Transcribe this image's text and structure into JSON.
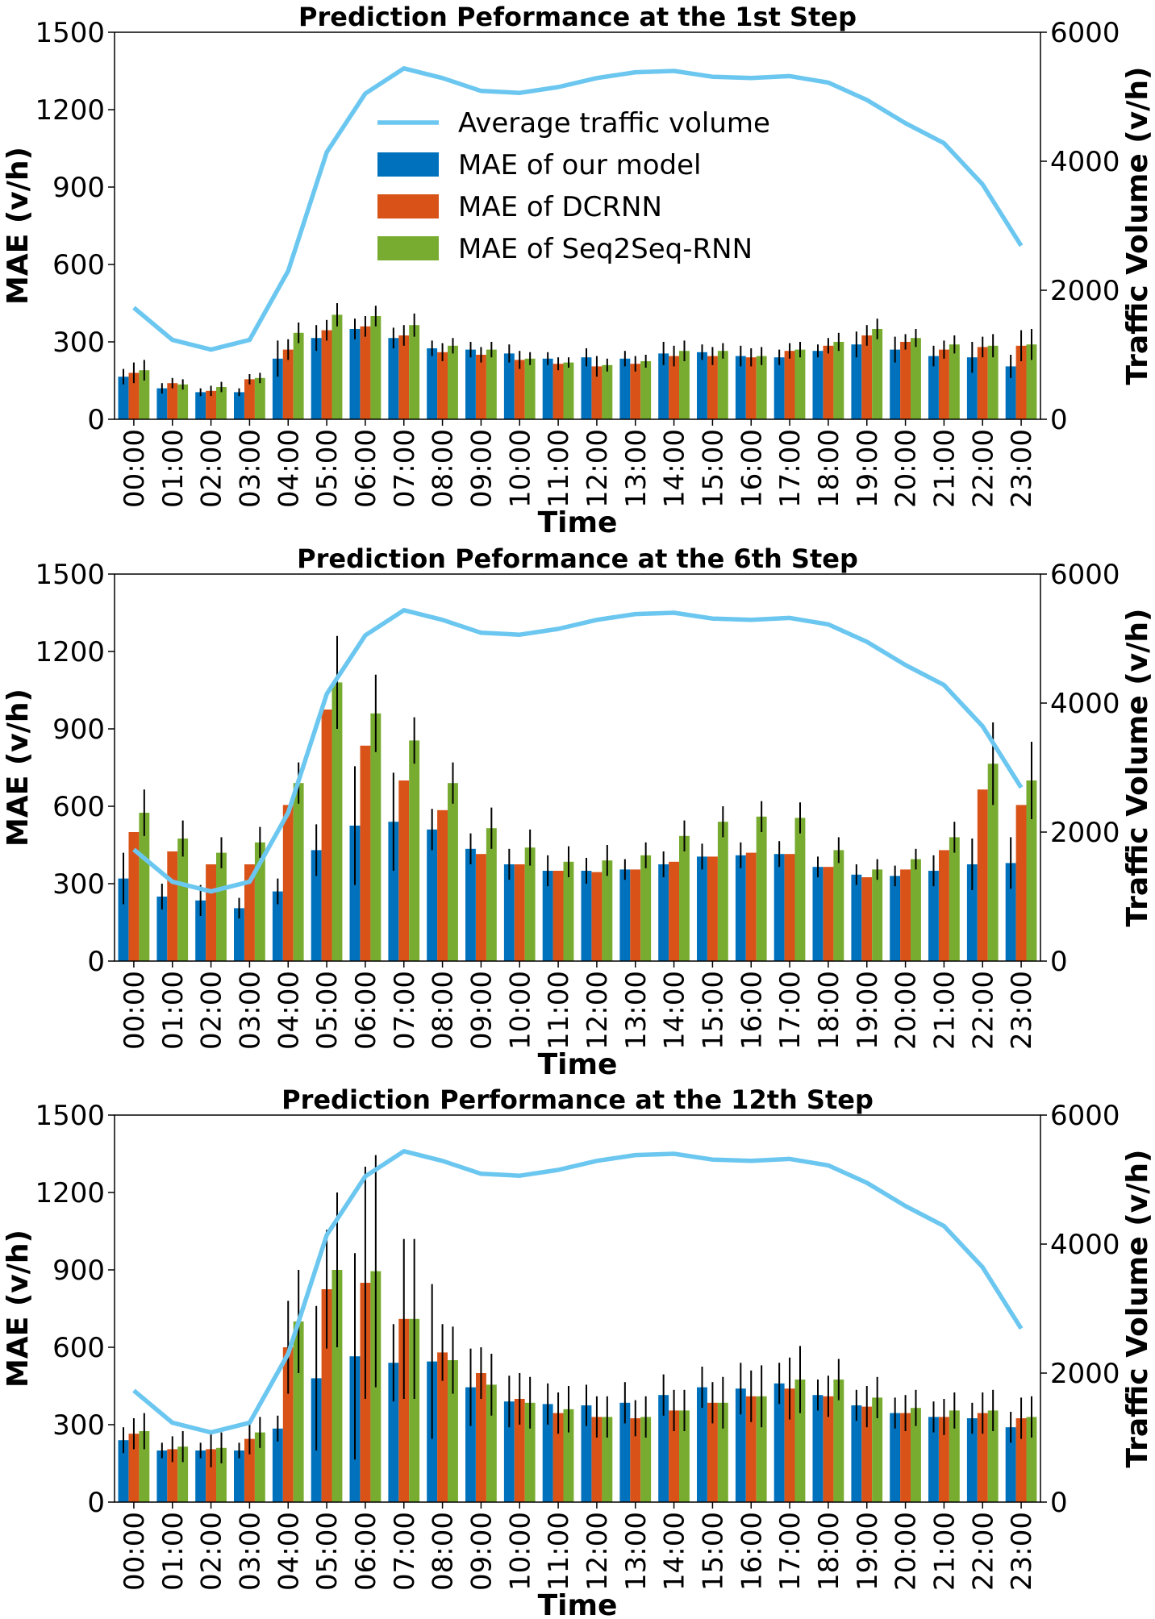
{
  "chart_data": [
    {
      "type": "bar",
      "title": "Prediction Peformance at the 1st Step",
      "xlabel": "Time",
      "ylabel": "MAE (v/h)",
      "y2label": "Traffic Volume (v/h)",
      "ylim": [
        0,
        1500
      ],
      "y2lim": [
        0,
        6000
      ],
      "yticks": [
        "0",
        "300",
        "600",
        "900",
        "1200",
        "1500"
      ],
      "y2ticks": [
        "0",
        "2000",
        "4000",
        "6000"
      ],
      "categories": [
        "00:00",
        "01:00",
        "02:00",
        "03:00",
        "04:00",
        "05:00",
        "06:00",
        "07:00",
        "08:00",
        "09:00",
        "10:00",
        "11:00",
        "12:00",
        "13:00",
        "14:00",
        "15:00",
        "16:00",
        "17:00",
        "18:00",
        "19:00",
        "20:00",
        "21:00",
        "22:00",
        "23:00"
      ],
      "series": [
        {
          "name": "MAE of our model",
          "color": "#0072bd",
          "values": [
            165,
            120,
            105,
            105,
            235,
            315,
            350,
            315,
            275,
            270,
            255,
            235,
            240,
            235,
            255,
            260,
            245,
            240,
            265,
            290,
            270,
            245,
            240,
            205
          ],
          "errors": [
            30,
            20,
            15,
            15,
            70,
            50,
            40,
            40,
            30,
            30,
            35,
            25,
            35,
            30,
            45,
            30,
            40,
            30,
            25,
            50,
            50,
            40,
            60,
            45
          ]
        },
        {
          "name": "MAE of DCRNN",
          "color": "#d95319",
          "values": [
            180,
            140,
            110,
            155,
            270,
            345,
            360,
            325,
            260,
            250,
            230,
            215,
            205,
            215,
            245,
            245,
            240,
            265,
            285,
            325,
            300,
            270,
            280,
            285
          ],
          "errors": [
            40,
            20,
            20,
            20,
            40,
            40,
            40,
            40,
            35,
            30,
            35,
            25,
            40,
            30,
            40,
            35,
            35,
            30,
            30,
            40,
            30,
            35,
            40,
            60
          ]
        },
        {
          "name": "MAE of Seq2Seq-RNN",
          "color": "#77ac30",
          "values": [
            190,
            135,
            125,
            160,
            335,
            405,
            400,
            365,
            285,
            270,
            235,
            220,
            210,
            225,
            265,
            265,
            245,
            270,
            300,
            350,
            315,
            290,
            285,
            290
          ],
          "errors": [
            40,
            20,
            20,
            20,
            40,
            45,
            40,
            45,
            30,
            30,
            25,
            20,
            25,
            25,
            40,
            30,
            35,
            30,
            35,
            40,
            35,
            35,
            45,
            60
          ]
        }
      ],
      "line": {
        "name": "Average traffic volume",
        "color": "#6cc7f0",
        "values": [
          1730,
          1230,
          1080,
          1230,
          2300,
          4140,
          5050,
          5440,
          5290,
          5090,
          5060,
          5150,
          5290,
          5380,
          5400,
          5310,
          5290,
          5320,
          5220,
          4950,
          4590,
          4280,
          3640,
          2690
        ]
      },
      "legend_position": "upper-center"
    },
    {
      "type": "bar",
      "title": "Prediction Peformance at the 6th Step",
      "xlabel": "Time",
      "ylabel": "MAE (v/h)",
      "y2label": "Traffic Volume (v/h)",
      "ylim": [
        0,
        1500
      ],
      "y2lim": [
        0,
        6000
      ],
      "yticks": [
        "0",
        "300",
        "600",
        "900",
        "1200",
        "1500"
      ],
      "y2ticks": [
        "0",
        "2000",
        "4000",
        "6000"
      ],
      "categories": [
        "00:00",
        "01:00",
        "02:00",
        "03:00",
        "04:00",
        "05:00",
        "06:00",
        "07:00",
        "08:00",
        "09:00",
        "10:00",
        "11:00",
        "12:00",
        "13:00",
        "14:00",
        "15:00",
        "16:00",
        "17:00",
        "18:00",
        "19:00",
        "20:00",
        "21:00",
        "22:00",
        "23:00"
      ],
      "series": [
        {
          "name": "MAE of our model",
          "color": "#0072bd",
          "values": [
            320,
            250,
            235,
            205,
            270,
            430,
            525,
            540,
            510,
            435,
            375,
            350,
            350,
            355,
            375,
            405,
            410,
            415,
            365,
            335,
            330,
            350,
            375,
            380
          ],
          "errors": [
            100,
            50,
            60,
            40,
            50,
            100,
            230,
            190,
            80,
            60,
            60,
            60,
            50,
            40,
            50,
            50,
            50,
            50,
            40,
            40,
            40,
            60,
            100,
            100
          ]
        },
        {
          "name": "MAE of DCRNN",
          "color": "#d95319",
          "values": [
            500,
            425,
            375,
            375,
            605,
            975,
            835,
            700,
            585,
            415,
            375,
            350,
            345,
            355,
            385,
            405,
            420,
            415,
            365,
            325,
            355,
            430,
            665,
            605
          ]
        },
        {
          "name": "MAE of Seq2Seq-RNN",
          "color": "#77ac30",
          "values": [
            575,
            475,
            420,
            460,
            690,
            1080,
            960,
            855,
            690,
            515,
            440,
            385,
            390,
            410,
            485,
            540,
            560,
            555,
            430,
            355,
            395,
            480,
            765,
            700
          ],
          "errors": [
            90,
            70,
            60,
            60,
            80,
            180,
            150,
            90,
            80,
            80,
            70,
            60,
            60,
            50,
            60,
            60,
            60,
            60,
            50,
            40,
            40,
            60,
            160,
            150
          ]
        }
      ],
      "line": {
        "name": "Average traffic volume",
        "color": "#6cc7f0",
        "values": [
          1730,
          1230,
          1080,
          1230,
          2300,
          4140,
          5050,
          5440,
          5290,
          5090,
          5060,
          5150,
          5290,
          5380,
          5400,
          5310,
          5290,
          5320,
          5220,
          4950,
          4590,
          4280,
          3640,
          2690
        ]
      }
    },
    {
      "type": "bar",
      "title": "Prediction Performance at the 12th Step",
      "xlabel": "Time",
      "ylabel": "MAE (v/h)",
      "y2label": "Traffic Volume (v/h)",
      "ylim": [
        0,
        1500
      ],
      "y2lim": [
        0,
        6000
      ],
      "yticks": [
        "0",
        "300",
        "600",
        "900",
        "1200",
        "1500"
      ],
      "y2ticks": [
        "0",
        "2000",
        "4000",
        "6000"
      ],
      "categories": [
        "00:00",
        "01:00",
        "02:00",
        "03:00",
        "04:00",
        "05:00",
        "06:00",
        "07:00",
        "08:00",
        "09:00",
        "10:00",
        "11:00",
        "12:00",
        "13:00",
        "14:00",
        "15:00",
        "16:00",
        "17:00",
        "18:00",
        "19:00",
        "20:00",
        "21:00",
        "22:00",
        "23:00"
      ],
      "series": [
        {
          "name": "MAE of our model",
          "color": "#0072bd",
          "values": [
            240,
            200,
            200,
            200,
            285,
            480,
            565,
            540,
            545,
            445,
            390,
            380,
            375,
            385,
            415,
            445,
            440,
            460,
            415,
            375,
            345,
            330,
            325,
            290
          ],
          "errors": [
            50,
            30,
            30,
            30,
            50,
            280,
            400,
            150,
            300,
            150,
            100,
            80,
            80,
            80,
            80,
            80,
            100,
            80,
            60,
            60,
            60,
            60,
            60,
            60
          ]
        },
        {
          "name": "MAE of DCRNN",
          "color": "#d95319",
          "values": [
            265,
            205,
            205,
            245,
            600,
            825,
            850,
            710,
            580,
            500,
            400,
            345,
            330,
            325,
            355,
            385,
            410,
            440,
            410,
            370,
            345,
            330,
            345,
            325
          ],
          "errors": [
            60,
            50,
            70,
            60,
            180,
            230,
            450,
            310,
            110,
            100,
            100,
            80,
            80,
            70,
            80,
            80,
            100,
            120,
            80,
            80,
            70,
            70,
            80,
            80
          ]
        },
        {
          "name": "MAE of Seq2Seq-RNN",
          "color": "#77ac30",
          "values": [
            275,
            215,
            210,
            270,
            700,
            900,
            895,
            710,
            550,
            455,
            385,
            360,
            330,
            330,
            355,
            385,
            410,
            475,
            475,
            405,
            365,
            355,
            355,
            330
          ],
          "errors": [
            70,
            60,
            60,
            60,
            200,
            300,
            450,
            310,
            130,
            120,
            100,
            90,
            80,
            80,
            80,
            100,
            120,
            130,
            80,
            80,
            70,
            70,
            80,
            80
          ]
        }
      ],
      "line": {
        "name": "Average traffic volume",
        "color": "#6cc7f0",
        "values": [
          1730,
          1230,
          1080,
          1230,
          2300,
          4140,
          5050,
          5440,
          5290,
          5090,
          5060,
          5150,
          5290,
          5380,
          5400,
          5310,
          5290,
          5320,
          5220,
          4950,
          4590,
          4280,
          3640,
          2690
        ]
      }
    }
  ]
}
